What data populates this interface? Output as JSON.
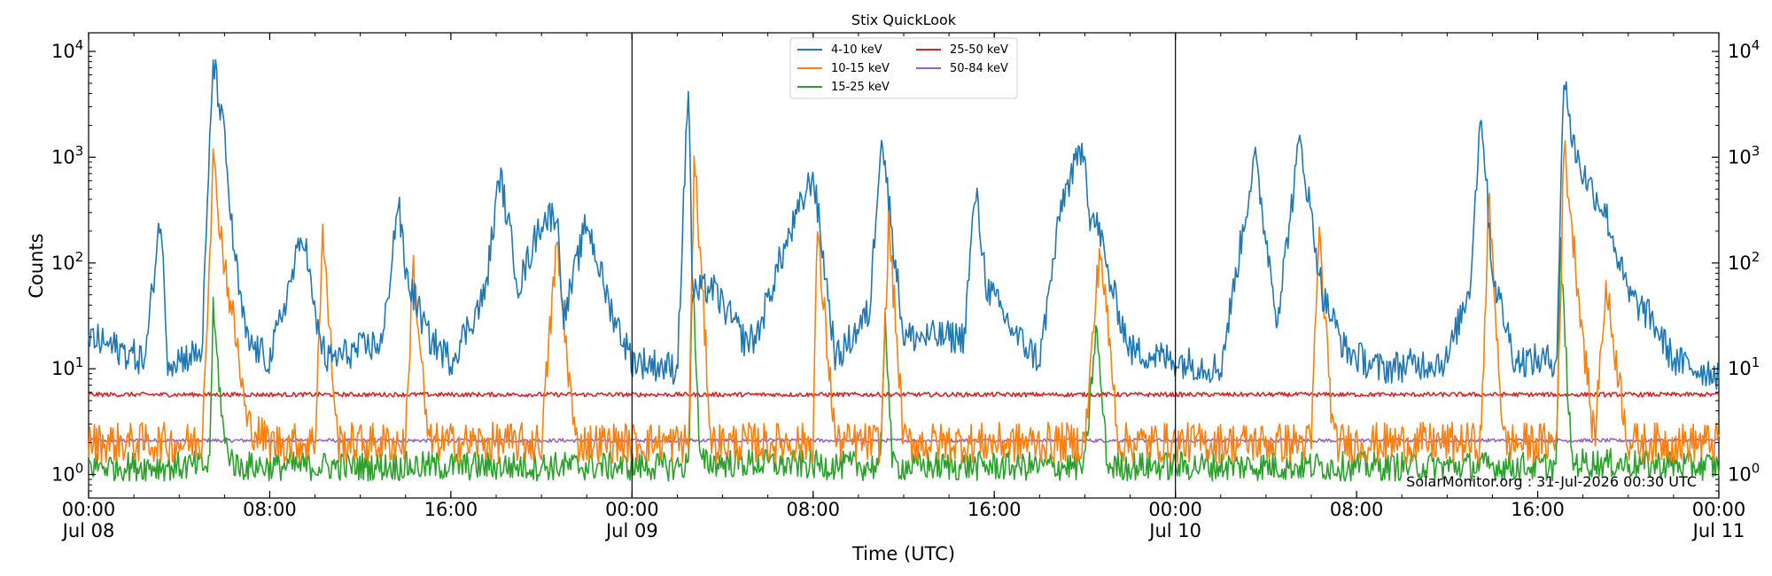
{
  "chart_data": {
    "type": "line",
    "title": "Stix QuickLook",
    "xlabel": "Time (UTC)",
    "ylabel": "Counts",
    "yscale": "log",
    "ylim": [
      0.6,
      15000
    ],
    "y_ticks": [
      {
        "base": "10",
        "exp": "0",
        "value": 1
      },
      {
        "base": "10",
        "exp": "1",
        "value": 10
      },
      {
        "base": "10",
        "exp": "2",
        "value": 100
      },
      {
        "base": "10",
        "exp": "3",
        "value": 1000
      },
      {
        "base": "10",
        "exp": "4",
        "value": 10000
      }
    ],
    "xlim": [
      "2026-07-08 00:00",
      "2026-07-11 00:00"
    ],
    "x_ticks": [
      {
        "value": "2026-07-08 00:00",
        "line1": "00:00",
        "line2": "Jul 08"
      },
      {
        "value": "2026-07-08 08:00",
        "line1": "08:00",
        "line2": ""
      },
      {
        "value": "2026-07-08 16:00",
        "line1": "16:00",
        "line2": ""
      },
      {
        "value": "2026-07-09 00:00",
        "line1": "00:00",
        "line2": "Jul 09"
      },
      {
        "value": "2026-07-09 08:00",
        "line1": "08:00",
        "line2": ""
      },
      {
        "value": "2026-07-09 16:00",
        "line1": "16:00",
        "line2": ""
      },
      {
        "value": "2026-07-10 00:00",
        "line1": "00:00",
        "line2": "Jul 10"
      },
      {
        "value": "2026-07-10 08:00",
        "line1": "08:00",
        "line2": ""
      },
      {
        "value": "2026-07-10 16:00",
        "line1": "16:00",
        "line2": ""
      },
      {
        "value": "2026-07-11 00:00",
        "line1": "00:00",
        "line2": "Jul 11"
      }
    ],
    "day_boundaries": [
      "2026-07-09 00:00",
      "2026-07-10 00:00"
    ],
    "legend_position": "top-center",
    "grid": false,
    "watermark": "SolarMonitor.org : 31-Jul-2026 00:30 UTC",
    "series": [
      {
        "name": "4-10 keV",
        "color": "#1f77b4",
        "noise": 0.45,
        "x": [
          "2026-07-08 00:00",
          "2026-07-08 02:30",
          "2026-07-08 03:10",
          "2026-07-08 03:30",
          "2026-07-08 05:00",
          "2026-07-08 05:30",
          "2026-07-08 06:00",
          "2026-07-08 06:20",
          "2026-07-08 06:40",
          "2026-07-08 07:00",
          "2026-07-08 08:00",
          "2026-07-08 09:30",
          "2026-07-08 10:00",
          "2026-07-08 10:30",
          "2026-07-08 13:00",
          "2026-07-08 13:40",
          "2026-07-08 14:00",
          "2026-07-08 15:00",
          "2026-07-08 16:00",
          "2026-07-08 17:30",
          "2026-07-08 18:10",
          "2026-07-08 19:00",
          "2026-07-08 20:00",
          "2026-07-08 20:40",
          "2026-07-08 21:00",
          "2026-07-08 22:00",
          "2026-07-08 23:00",
          "2026-07-09 00:00",
          "2026-07-09 02:00",
          "2026-07-09 02:30",
          "2026-07-09 02:40",
          "2026-07-09 03:30",
          "2026-07-09 05:00",
          "2026-07-09 05:30",
          "2026-07-09 06:30",
          "2026-07-09 08:00",
          "2026-07-09 09:00",
          "2026-07-09 10:30",
          "2026-07-09 11:00",
          "2026-07-09 12:00",
          "2026-07-09 14:40",
          "2026-07-09 15:10",
          "2026-07-09 15:40",
          "2026-07-09 17:00",
          "2026-07-09 18:00",
          "2026-07-09 19:00",
          "2026-07-09 20:00",
          "2026-07-09 20:10",
          "2026-07-09 20:40",
          "2026-07-09 21:00",
          "2026-07-09 22:00",
          "2026-07-10 00:00",
          "2026-07-10 02:00",
          "2026-07-10 03:30",
          "2026-07-10 04:30",
          "2026-07-10 05:30",
          "2026-07-10 06:30",
          "2026-07-10 07:30",
          "2026-07-10 09:00",
          "2026-07-10 12:00",
          "2026-07-10 13:00",
          "2026-07-10 13:30",
          "2026-07-10 14:00",
          "2026-07-10 15:00",
          "2026-07-10 16:50",
          "2026-07-10 17:10",
          "2026-07-10 17:30",
          "2026-07-10 18:00",
          "2026-07-10 19:00",
          "2026-07-10 20:00",
          "2026-07-10 21:00",
          "2026-07-10 22:00",
          "2026-07-10 23:00",
          "2026-07-11 00:00"
        ],
        "values": [
          20,
          12,
          300,
          12,
          14,
          8500,
          1500,
          200,
          50,
          18,
          12,
          200,
          30,
          12,
          18,
          400,
          80,
          20,
          12,
          50,
          700,
          60,
          250,
          300,
          30,
          250,
          40,
          12,
          10,
          6000,
          50,
          60,
          18,
          20,
          100,
          700,
          12,
          35,
          1800,
          20,
          20,
          500,
          60,
          20,
          12,
          400,
          1400,
          300,
          200,
          80,
          15,
          12,
          10,
          1000,
          30,
          1500,
          50,
          15,
          10,
          12,
          60,
          3000,
          80,
          12,
          12,
          7000,
          1500,
          700,
          300,
          50,
          30,
          12,
          10,
          9
        ]
      },
      {
        "name": "10-15 keV",
        "color": "#ff7f0e",
        "noise": 0.55,
        "x": [
          "2026-07-08 00:00",
          "2026-07-08 05:00",
          "2026-07-08 05:30",
          "2026-07-08 06:00",
          "2026-07-08 06:30",
          "2026-07-08 07:00",
          "2026-07-08 08:00",
          "2026-07-08 10:00",
          "2026-07-08 10:20",
          "2026-07-08 11:00",
          "2026-07-08 14:00",
          "2026-07-08 14:20",
          "2026-07-08 15:00",
          "2026-07-08 20:00",
          "2026-07-08 20:40",
          "2026-07-08 21:30",
          "2026-07-09 00:00",
          "2026-07-09 02:30",
          "2026-07-09 02:45",
          "2026-07-09 03:30",
          "2026-07-09 08:00",
          "2026-07-09 08:10",
          "2026-07-09 09:00",
          "2026-07-09 11:00",
          "2026-07-09 11:20",
          "2026-07-09 12:00",
          "2026-07-09 20:00",
          "2026-07-09 20:40",
          "2026-07-09 21:30",
          "2026-07-10 00:00",
          "2026-07-10 06:00",
          "2026-07-10 06:20",
          "2026-07-10 07:00",
          "2026-07-10 13:30",
          "2026-07-10 13:50",
          "2026-07-10 14:30",
          "2026-07-10 16:50",
          "2026-07-10 17:10",
          "2026-07-10 17:40",
          "2026-07-10 18:30",
          "2026-07-10 19:00",
          "2026-07-10 20:00",
          "2026-07-10 21:00",
          "2026-07-11 00:00"
        ],
        "values": [
          2,
          2,
          900,
          100,
          20,
          3,
          2,
          2,
          200,
          2,
          2,
          100,
          2,
          2,
          150,
          2,
          2,
          2,
          1000,
          2,
          2,
          200,
          2,
          2,
          250,
          2,
          2,
          150,
          2,
          2,
          2,
          200,
          2,
          2,
          400,
          2,
          2,
          1300,
          100,
          2,
          60,
          2,
          2,
          2
        ]
      },
      {
        "name": "15-25 keV",
        "color": "#2ca02c",
        "noise": 0.4,
        "x": [
          "2026-07-08 00:00",
          "2026-07-08 05:20",
          "2026-07-08 05:30",
          "2026-07-08 06:00",
          "2026-07-08 06:30",
          "2026-07-09 02:30",
          "2026-07-09 02:40",
          "2026-07-09 03:00",
          "2026-07-09 11:00",
          "2026-07-09 11:10",
          "2026-07-09 11:30",
          "2026-07-09 20:00",
          "2026-07-09 20:30",
          "2026-07-09 21:00",
          "2026-07-10 16:50",
          "2026-07-10 17:00",
          "2026-07-10 17:30",
          "2026-07-11 00:00"
        ],
        "values": [
          1.2,
          1.2,
          35,
          2,
          1.2,
          1.2,
          90,
          1.3,
          1.2,
          40,
          1.2,
          1.2,
          25,
          1.2,
          1.2,
          140,
          1.3,
          1.2
        ]
      },
      {
        "name": "25-50 keV",
        "color": "#d62728",
        "noise": 0.06,
        "x": [
          "2026-07-08 00:00",
          "2026-07-11 00:00"
        ],
        "values": [
          5.7,
          5.7
        ]
      },
      {
        "name": "50-84 keV",
        "color": "#9467bd",
        "noise": 0.05,
        "x": [
          "2026-07-08 00:00",
          "2026-07-11 00:00"
        ],
        "values": [
          2.1,
          2.1
        ]
      }
    ]
  }
}
